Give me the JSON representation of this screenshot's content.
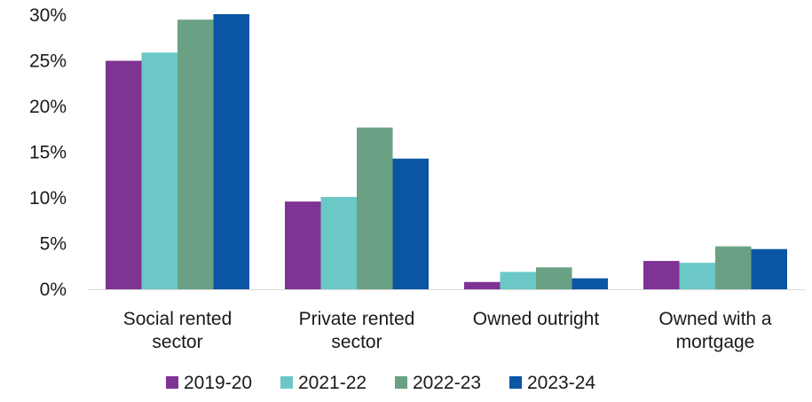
{
  "chart_data": {
    "type": "bar",
    "title": "",
    "xlabel": "",
    "ylabel": "",
    "ylim": [
      0,
      30
    ],
    "ytick_values": [
      0,
      5,
      10,
      15,
      20,
      25,
      30
    ],
    "ytick_labels": [
      "0%",
      "5%",
      "10%",
      "15%",
      "20%",
      "25%",
      "30%"
    ],
    "grid": false,
    "legend_position": "bottom",
    "categories": [
      [
        "Social rented",
        "sector"
      ],
      [
        "Private rented",
        "sector"
      ],
      [
        "Owned outright"
      ],
      [
        "Owned with a",
        "mortgage"
      ]
    ],
    "series": [
      {
        "name": "2019-20",
        "color": "#7F3393",
        "values": [
          25.0,
          9.6,
          0.8,
          3.1
        ]
      },
      {
        "name": "2021-22",
        "color": "#6BC8C7",
        "values": [
          25.9,
          10.1,
          1.9,
          2.9
        ]
      },
      {
        "name": "2022-23",
        "color": "#6AA184",
        "values": [
          29.5,
          17.7,
          2.4,
          4.7
        ]
      },
      {
        "name": "2023-24",
        "color": "#0B56A4",
        "values": [
          30.1,
          14.3,
          1.2,
          4.4
        ]
      }
    ]
  }
}
